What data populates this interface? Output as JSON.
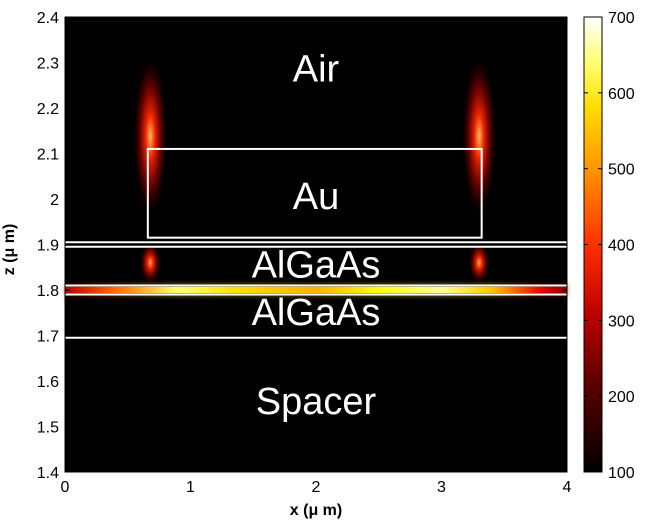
{
  "chart_data": {
    "type": "heatmap",
    "xlabel": "x (μ m)",
    "ylabel": "z (μ m)",
    "xlim": [
      0,
      4
    ],
    "ylim": [
      1.4,
      2.4
    ],
    "x_ticks": [
      {
        "value": 0,
        "label": "0"
      },
      {
        "value": 1,
        "label": "1"
      },
      {
        "value": 2,
        "label": "2"
      },
      {
        "value": 3,
        "label": "3"
      },
      {
        "value": 4,
        "label": "4"
      }
    ],
    "y_ticks": [
      {
        "value": 1.4,
        "label": "1.4"
      },
      {
        "value": 1.5,
        "label": "1.5"
      },
      {
        "value": 1.6,
        "label": "1.6"
      },
      {
        "value": 1.7,
        "label": "1.7"
      },
      {
        "value": 1.8,
        "label": "1.8"
      },
      {
        "value": 1.9,
        "label": "1.9"
      },
      {
        "value": 2.0,
        "label": "2"
      },
      {
        "value": 2.1,
        "label": "2.1"
      },
      {
        "value": 2.2,
        "label": "2.2"
      },
      {
        "value": 2.3,
        "label": "2.3"
      },
      {
        "value": 2.4,
        "label": "2.4"
      }
    ],
    "colorbar": {
      "min": 100,
      "max": 700,
      "ticks": [
        100,
        200,
        300,
        400,
        500,
        600,
        700
      ],
      "colormap": "hot"
    },
    "layer_interfaces_z": [
      1.695,
      1.79,
      1.81,
      1.895,
      1.905
    ],
    "au_stripe": {
      "x": [
        0.66,
        3.32
      ],
      "z": [
        1.915,
        2.11
      ]
    },
    "regions": [
      {
        "label": "Air",
        "x": 2.0,
        "z": 2.28
      },
      {
        "label": "Au",
        "x": 2.0,
        "z": 2.0
      },
      {
        "label": "AlGaAs",
        "x": 2.0,
        "z": 1.85
      },
      {
        "label": "AlGaAs",
        "x": 2.0,
        "z": 1.745
      },
      {
        "label": "Spacer",
        "x": 2.0,
        "z": 1.55
      }
    ],
    "hotspots": [
      {
        "x": 0.68,
        "z": 2.12,
        "value": 520
      },
      {
        "x": 3.3,
        "z": 2.12,
        "value": 560
      },
      {
        "x": 0.68,
        "z": 1.86,
        "value": 420
      },
      {
        "x": 3.3,
        "z": 1.86,
        "value": 420
      }
    ],
    "guided_mode": {
      "z": 1.8,
      "profile": [
        {
          "x": 0.0,
          "value": 260
        },
        {
          "x": 0.4,
          "value": 420
        },
        {
          "x": 0.9,
          "value": 620
        },
        {
          "x": 1.4,
          "value": 520
        },
        {
          "x": 2.0,
          "value": 480
        },
        {
          "x": 2.5,
          "value": 560
        },
        {
          "x": 3.0,
          "value": 640
        },
        {
          "x": 3.4,
          "value": 500
        },
        {
          "x": 3.8,
          "value": 300
        },
        {
          "x": 4.0,
          "value": 220
        }
      ]
    }
  }
}
